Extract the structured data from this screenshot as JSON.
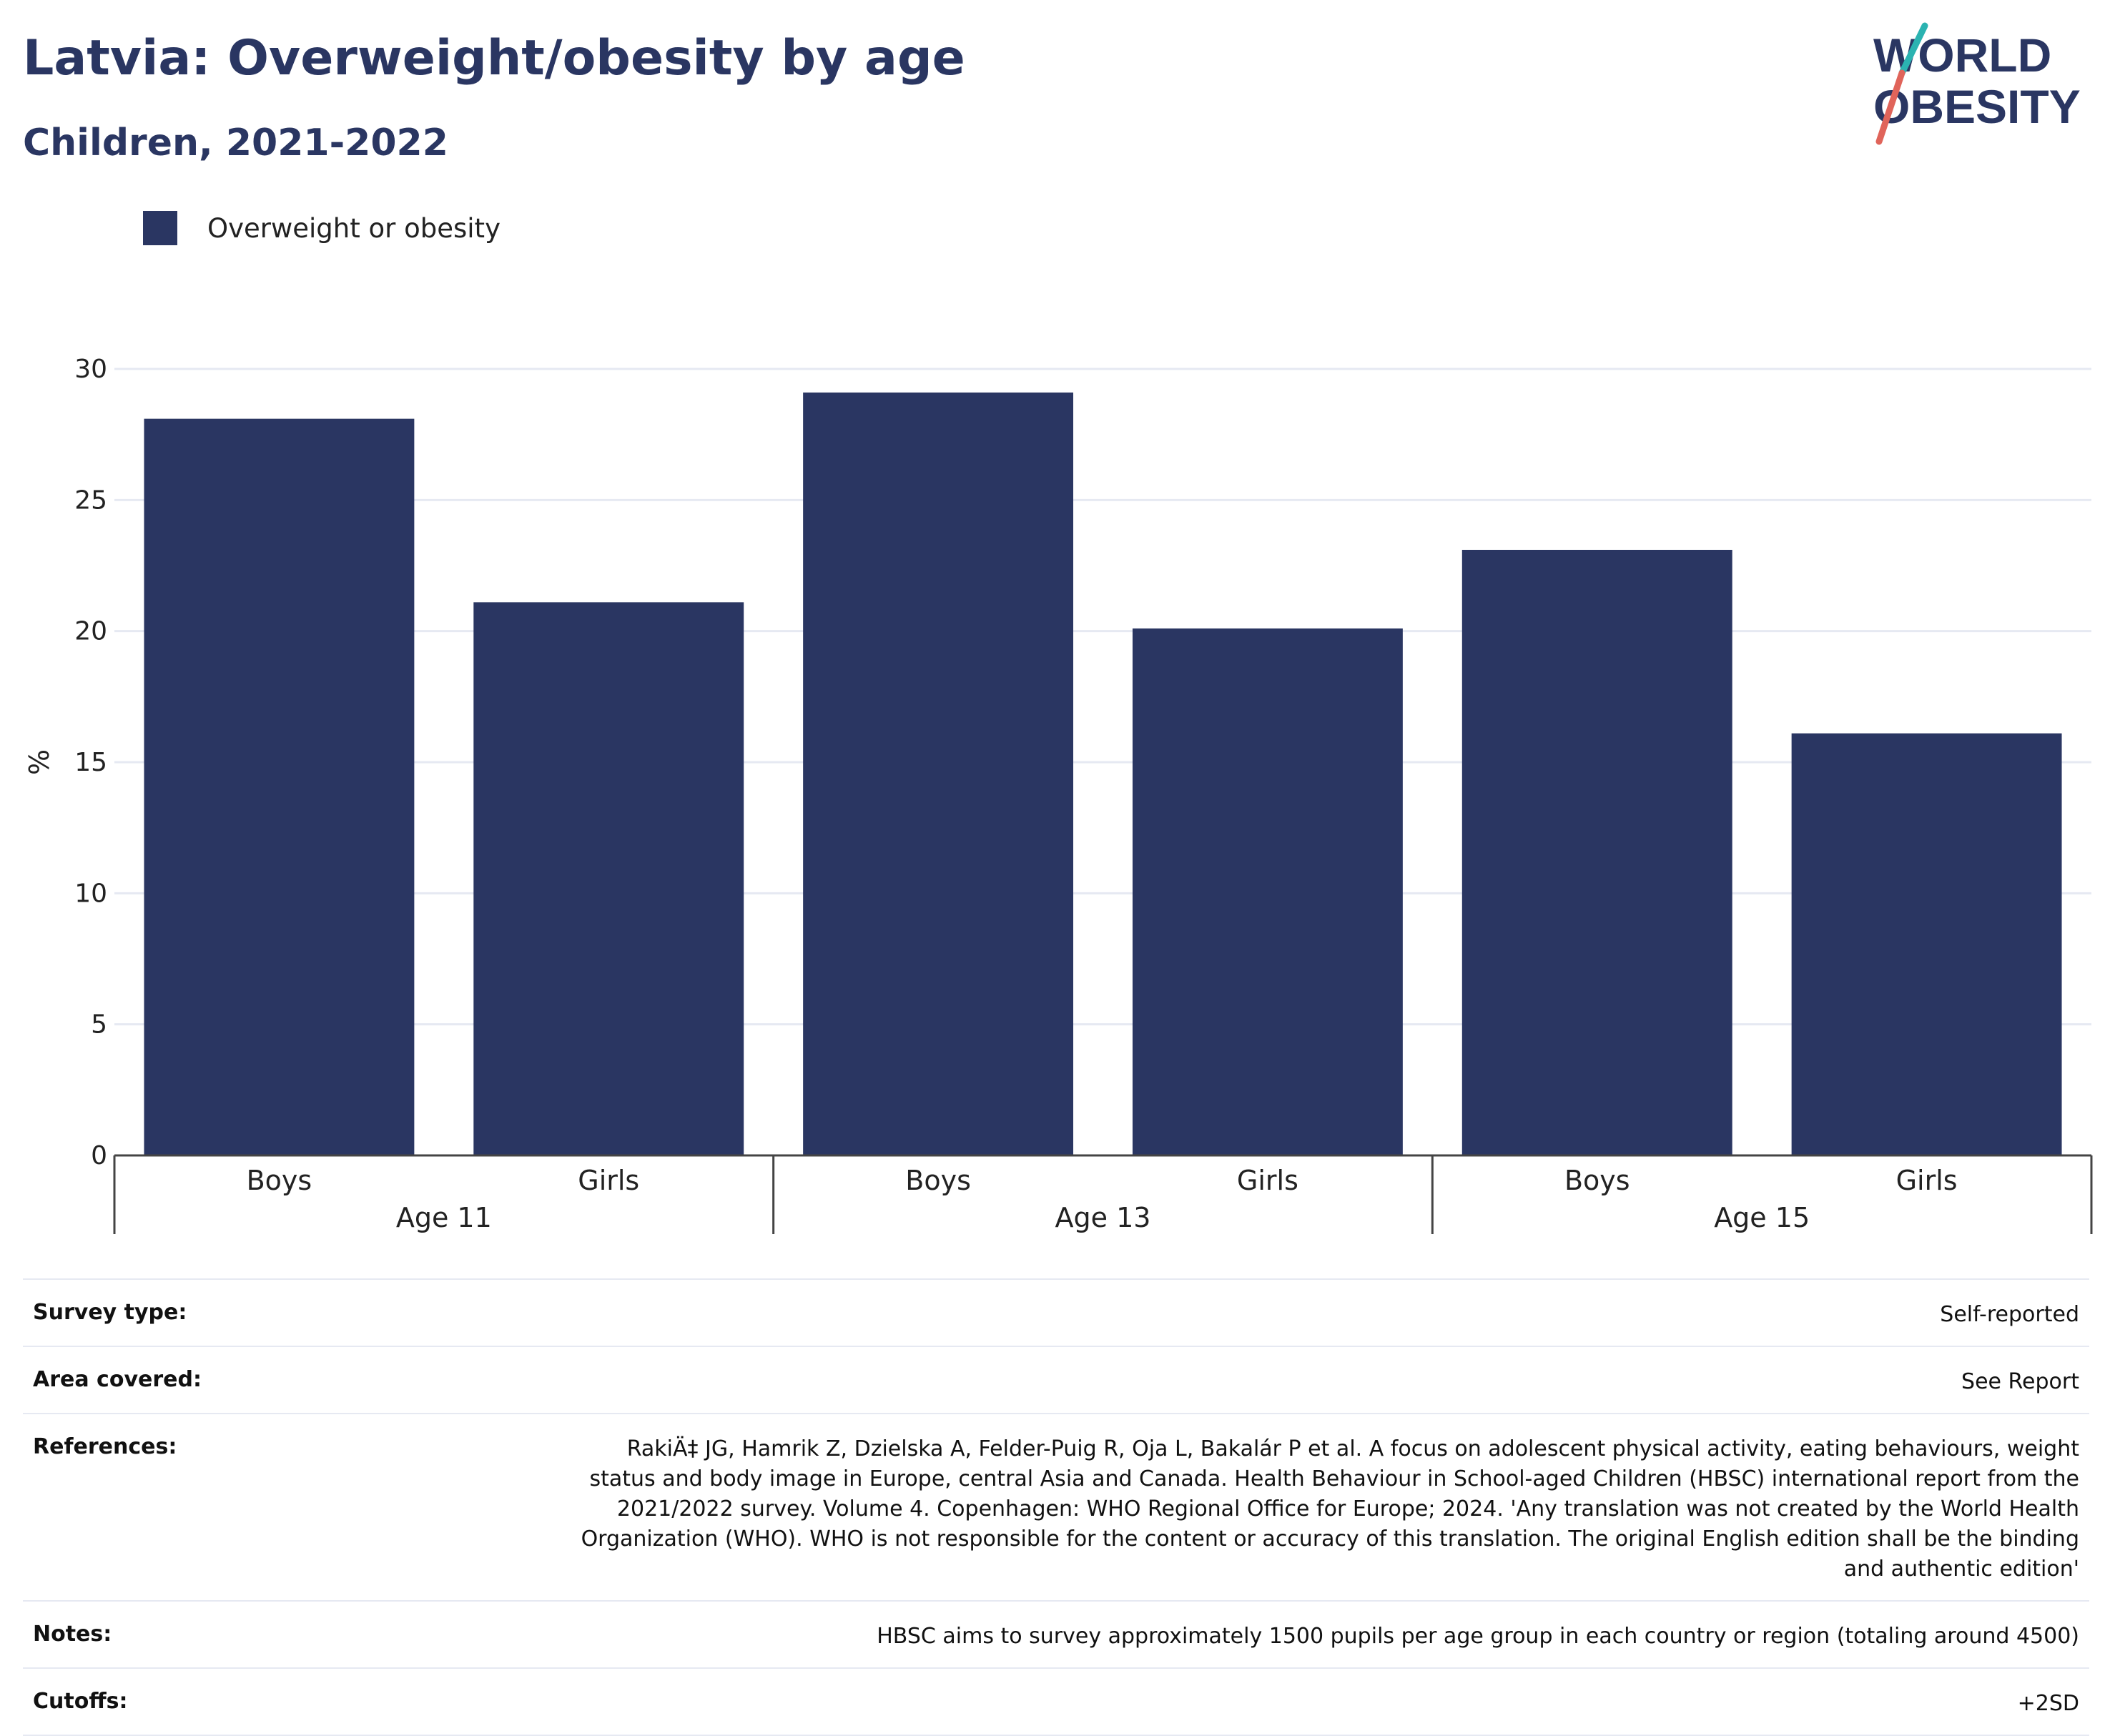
{
  "header": {
    "title": "Latvia: Overweight/obesity by age",
    "subtitle": "Children, 2021-2022"
  },
  "logo": {
    "line1": "WORLD",
    "line2": "OBESITY"
  },
  "legend": {
    "label": "Overweight or obesity"
  },
  "colors": {
    "bar": "#2a3662",
    "grid": "#e6e9f2",
    "axis": "#444444",
    "logo_teal": "#2bb3b1",
    "logo_coral": "#e0645a"
  },
  "chart_data": {
    "type": "bar",
    "categories": [
      "Boys",
      "Girls",
      "Boys",
      "Girls",
      "Boys",
      "Girls"
    ],
    "groups": [
      "Age 11",
      "Age 13",
      "Age 15"
    ],
    "series": [
      {
        "name": "Overweight or obesity",
        "values": [
          28.1,
          21.1,
          29.1,
          20.1,
          23.1,
          16.1
        ]
      }
    ],
    "ylabel": "%",
    "ylim": [
      0,
      30
    ],
    "yticks": [
      0,
      5,
      10,
      15,
      20,
      25,
      30
    ],
    "grid": true,
    "legend_position": "top-left"
  },
  "meta": [
    {
      "label": "Survey type:",
      "value": "Self-reported"
    },
    {
      "label": "Area covered:",
      "value": "See Report"
    },
    {
      "label": "References:",
      "value": "RakiÄ‡ JG, Hamrik Z, Dzielska A, Felder-Puig R, Oja L, Bakalár P et al. A focus on adolescent physical activity, eating behaviours, weight status and body image in Europe, central Asia and Canada. Health Behaviour in School-aged Children (HBSC) international report from the 2021/2022 survey. Volume 4. Copenhagen: WHO Regional Office for Europe; 2024. 'Any translation was not created by the World Health Organization (WHO). WHO is not responsible for the content or accuracy of this translation. The original English edition shall be the binding and authentic edition'"
    },
    {
      "label": "Notes:",
      "value": "HBSC aims to survey approximately 1500 pupils per age group in each country or region (totaling around 4500)"
    },
    {
      "label": "Cutoffs:",
      "value": "+2SD"
    }
  ]
}
